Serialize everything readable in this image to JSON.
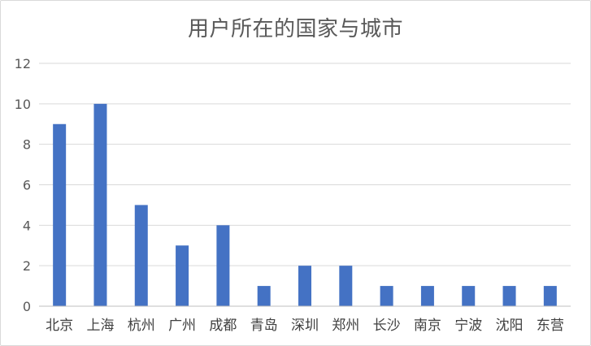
{
  "chart_data": {
    "type": "bar",
    "title": "用户所在的国家与城市",
    "xlabel": "",
    "ylabel": "",
    "ylim": [
      0,
      12
    ],
    "yticks": [
      0,
      2,
      4,
      6,
      8,
      10,
      12
    ],
    "grid": true,
    "categories": [
      "北京",
      "上海",
      "杭州",
      "广州",
      "成都",
      "青岛",
      "深圳",
      "郑州",
      "长沙",
      "南京",
      "宁波",
      "沈阳",
      "东营"
    ],
    "values": [
      9,
      10,
      5,
      3,
      4,
      1,
      2,
      2,
      1,
      1,
      1,
      1,
      1
    ],
    "bar_color": "#4472C4"
  }
}
